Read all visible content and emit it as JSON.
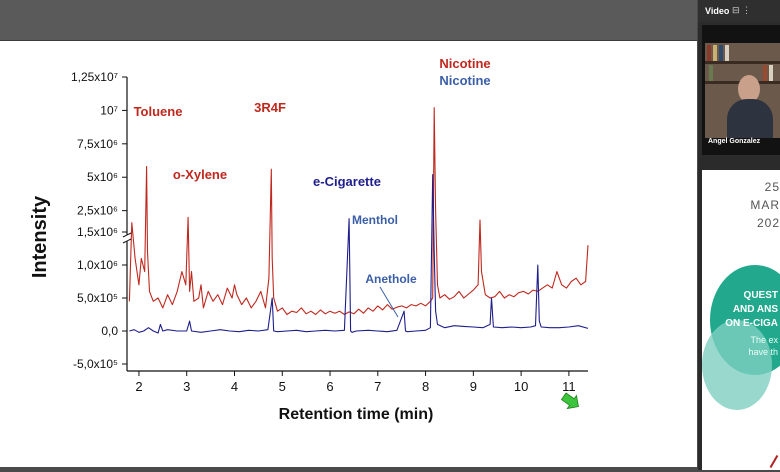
{
  "video": {
    "title": "Video",
    "presenter_name": "Angel Gonzalez"
  },
  "poster": {
    "day": "25",
    "month": "MAR",
    "year": "202",
    "line1": "QUEST",
    "line2": "AND ANS",
    "line3": "ON E-CIGA",
    "line4": "The ex",
    "line5": "have th"
  },
  "chart_data": {
    "type": "line",
    "xlabel": "Retention time (min)",
    "ylabel": "Intensity",
    "xlim": [
      1.75,
      11.4
    ],
    "x_ticks": [
      2,
      3,
      4,
      5,
      6,
      7,
      8,
      9,
      10,
      11
    ],
    "y_tick_labels": [
      "1,25x10⁷",
      "10⁷",
      "7,5x10⁶",
      "5x10⁶",
      "2,5x10⁶",
      "1,5x10⁶",
      "1,0x10⁶",
      "5,0x10⁵",
      "0,0",
      "-5,0x10⁵"
    ],
    "y_axis_break": true,
    "series": [
      {
        "name": "3R4F",
        "color": "#c0281e",
        "x": [
          1.8,
          1.85,
          1.92,
          2.0,
          2.05,
          2.12,
          2.16,
          2.18,
          2.22,
          2.3,
          2.4,
          2.5,
          2.6,
          2.7,
          2.8,
          2.9,
          2.98,
          3.03,
          3.06,
          3.1,
          3.15,
          3.25,
          3.3,
          3.35,
          3.45,
          3.55,
          3.65,
          3.75,
          3.85,
          3.95,
          4.0,
          4.05,
          4.15,
          4.25,
          4.35,
          4.45,
          4.55,
          4.65,
          4.72,
          4.77,
          4.79,
          4.82,
          4.9,
          5.0,
          5.1,
          5.2,
          5.3,
          5.4,
          5.5,
          5.6,
          5.7,
          5.8,
          5.9,
          6.0,
          6.1,
          6.2,
          6.3,
          6.4,
          6.5,
          6.6,
          6.7,
          6.8,
          6.9,
          7.0,
          7.1,
          7.2,
          7.3,
          7.4,
          7.5,
          7.6,
          7.7,
          7.8,
          7.9,
          8.0,
          8.1,
          8.15,
          8.18,
          8.21,
          8.25,
          8.3,
          8.4,
          8.5,
          8.6,
          8.7,
          8.8,
          8.9,
          9.0,
          9.1,
          9.14,
          9.17,
          9.25,
          9.35,
          9.45,
          9.55,
          9.65,
          9.75,
          9.85,
          9.95,
          10.05,
          10.15,
          10.25,
          10.35,
          10.45,
          10.55,
          10.65,
          10.75,
          10.85,
          10.95,
          11.05,
          11.15,
          11.25,
          11.35,
          11.4
        ],
        "y": [
          450000,
          1600000,
          1100000,
          700000,
          1100000,
          900000,
          5800000,
          1200000,
          600000,
          450000,
          500000,
          350000,
          550000,
          400000,
          600000,
          900000,
          700000,
          2000000,
          600000,
          900000,
          450000,
          500000,
          700000,
          350000,
          600000,
          450000,
          550000,
          400000,
          650000,
          500000,
          700000,
          550000,
          400000,
          500000,
          350000,
          450000,
          600000,
          350000,
          800000,
          5600000,
          1100000,
          500000,
          300000,
          350000,
          250000,
          300000,
          280000,
          350000,
          260000,
          300000,
          250000,
          320000,
          260000,
          300000,
          270000,
          300000,
          250000,
          290000,
          260000,
          330000,
          270000,
          350000,
          300000,
          380000,
          320000,
          400000,
          330000,
          360000,
          380000,
          350000,
          400000,
          380000,
          420000,
          380000,
          450000,
          500000,
          10200000,
          2500000,
          700000,
          500000,
          550000,
          480000,
          520000,
          600000,
          500000,
          560000,
          620000,
          700000,
          1800000,
          900000,
          550000,
          500000,
          520000,
          600000,
          500000,
          550000,
          520000,
          580000,
          600000,
          560000,
          620000,
          600000,
          650000,
          700000,
          650000,
          900000,
          700000,
          650000,
          750000,
          800000,
          700000,
          750000,
          1300000
        ]
      },
      {
        "name": "e-Cigarette",
        "color": "#1e1e8c",
        "x": [
          1.8,
          1.9,
          2.0,
          2.1,
          2.2,
          2.3,
          2.4,
          2.45,
          2.5,
          2.6,
          2.8,
          3.0,
          3.06,
          3.1,
          3.3,
          3.5,
          3.7,
          3.9,
          4.1,
          4.3,
          4.5,
          4.7,
          4.79,
          4.82,
          4.9,
          5.1,
          5.3,
          5.5,
          5.7,
          5.9,
          6.1,
          6.3,
          6.4,
          6.43,
          6.46,
          6.55,
          6.8,
          7.0,
          7.2,
          7.4,
          7.55,
          7.58,
          7.62,
          7.8,
          8.0,
          8.1,
          8.15,
          8.18,
          8.21,
          8.25,
          8.4,
          8.6,
          8.8,
          9.0,
          9.2,
          9.35,
          9.38,
          9.42,
          9.6,
          9.8,
          10.0,
          10.2,
          10.3,
          10.35,
          10.38,
          10.42,
          10.6,
          10.8,
          11.0,
          11.2,
          11.4
        ],
        "y": [
          0,
          20000,
          -20000,
          0,
          50000,
          0,
          -30000,
          100000,
          0,
          20000,
          0,
          0,
          150000,
          0,
          -20000,
          0,
          20000,
          0,
          -10000,
          10000,
          0,
          20000,
          500000,
          0,
          -10000,
          0,
          10000,
          -10000,
          0,
          10000,
          0,
          10000,
          1900000,
          0,
          -20000,
          0,
          10000,
          0,
          -10000,
          10000,
          300000,
          0,
          -10000,
          0,
          10000,
          50000,
          5200000,
          1200000,
          300000,
          100000,
          50000,
          80000,
          70000,
          60000,
          50000,
          100000,
          500000,
          60000,
          50000,
          60000,
          50000,
          60000,
          80000,
          1000000,
          150000,
          60000,
          50000,
          50000,
          60000,
          80000,
          40000
        ]
      }
    ],
    "annotations": [
      {
        "text": "Toluene",
        "color": "#c0281e"
      },
      {
        "text": "o-Xylene",
        "color": "#c0281e"
      },
      {
        "text": "3R4F",
        "color": "#c0281e"
      },
      {
        "text": "Nicotine",
        "color": "#c0281e"
      },
      {
        "text": "Nicotine",
        "color": "#3a5ea8"
      },
      {
        "text": "e-Cigarette",
        "color": "#1e1e8c"
      },
      {
        "text": "Menthol",
        "color": "#3a5ea8"
      },
      {
        "text": "Anethole",
        "color": "#3a5ea8"
      }
    ]
  }
}
